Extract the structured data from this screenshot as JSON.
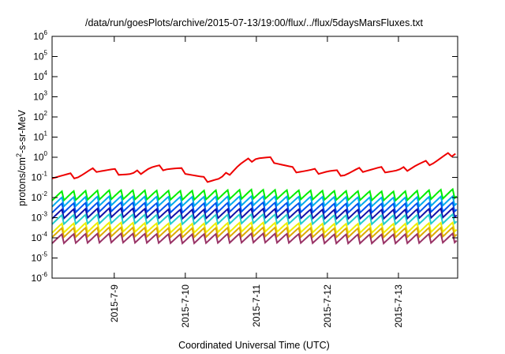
{
  "chart_data": {
    "type": "line",
    "title": "/data/run/goesPlots/archive/2015-07-13/19:00/flux/../flux/5daysMarsFluxes.txt",
    "xlabel": "Coordinated Universal Time (UTC)",
    "ylabel": {
      "pre": "protons/cm",
      "sup": "2",
      "post": "-s-sr-MeV"
    },
    "y_scale": "log",
    "ylim": [
      1e-06,
      1000000.0
    ],
    "y_ticks": [
      {
        "exp": -6
      },
      {
        "exp": -5
      },
      {
        "exp": -4
      },
      {
        "exp": -3
      },
      {
        "exp": -2
      },
      {
        "exp": -1
      },
      {
        "exp": 0
      },
      {
        "exp": 1
      },
      {
        "exp": 2
      },
      {
        "exp": 3
      },
      {
        "exp": 4
      },
      {
        "exp": 5
      },
      {
        "exp": 6
      }
    ],
    "x_range": [
      "2015-07-08 03:00",
      "2015-07-13 20:00"
    ],
    "x_ticks": [
      "2015-7-9",
      "2015-7-10",
      "2015-7-11",
      "2015-7-12",
      "2015-7-13"
    ],
    "grid": false,
    "legend": "none",
    "series": [
      {
        "color": "#ee0000",
        "x": [
          "2015-07-08 03:00",
          "2015-07-08 12:00",
          "2015-07-08 18:00",
          "2015-07-09 00:00",
          "2015-07-09 06:00",
          "2015-07-09 12:00",
          "2015-07-09 18:00",
          "2015-07-10 00:00",
          "2015-07-10 06:00",
          "2015-07-10 12:00",
          "2015-07-10 18:00",
          "2015-07-11 00:00",
          "2015-07-11 06:00",
          "2015-07-11 12:00",
          "2015-07-11 18:00",
          "2015-07-12 00:00",
          "2015-07-12 06:00",
          "2015-07-12 12:00",
          "2015-07-12 18:00",
          "2015-07-13 00:00",
          "2015-07-13 06:00",
          "2015-07-13 12:00",
          "2015-07-13 20:00"
        ],
        "values": [
          0.12,
          0.12,
          0.25,
          0.2,
          0.13,
          0.3,
          0.3,
          0.2,
          0.08,
          0.08,
          0.4,
          1.0,
          0.7,
          0.25,
          0.2,
          0.2,
          0.15,
          0.25,
          0.25,
          0.2,
          0.4,
          0.6,
          2.0
        ]
      },
      {
        "color": "#00ee00",
        "x": [
          "2015-07-08 03:00",
          "2015-07-09 00:00",
          "2015-07-10 00:00",
          "2015-07-11 00:00",
          "2015-07-12 00:00",
          "2015-07-13 00:00",
          "2015-07-13 20:00"
        ],
        "values": [
          0.012,
          0.014,
          0.013,
          0.015,
          0.013,
          0.012,
          0.016
        ]
      },
      {
        "color": "#00aaee",
        "x": [
          "2015-07-08 03:00",
          "2015-07-09 00:00",
          "2015-07-10 00:00",
          "2015-07-11 00:00",
          "2015-07-12 00:00",
          "2015-07-13 00:00",
          "2015-07-13 20:00"
        ],
        "values": [
          0.006,
          0.007,
          0.0065,
          0.007,
          0.0065,
          0.006,
          0.007
        ]
      },
      {
        "color": "#0055ee",
        "x": [
          "2015-07-08 03:00",
          "2015-07-09 00:00",
          "2015-07-10 00:00",
          "2015-07-11 00:00",
          "2015-07-12 00:00",
          "2015-07-13 00:00",
          "2015-07-13 20:00"
        ],
        "values": [
          0.003,
          0.0035,
          0.003,
          0.0035,
          0.003,
          0.003,
          0.0035
        ]
      },
      {
        "color": "#1111aa",
        "x": [
          "2015-07-08 03:00",
          "2015-07-09 00:00",
          "2015-07-10 00:00",
          "2015-07-11 00:00",
          "2015-07-12 00:00",
          "2015-07-13 00:00",
          "2015-07-13 20:00"
        ],
        "values": [
          0.0015,
          0.0018,
          0.0015,
          0.0017,
          0.0015,
          0.0015,
          0.0018
        ]
      },
      {
        "color": "#22cccc",
        "x": [
          "2015-07-08 03:00",
          "2015-07-09 00:00",
          "2015-07-10 00:00",
          "2015-07-11 00:00",
          "2015-07-12 00:00",
          "2015-07-13 00:00",
          "2015-07-13 20:00"
        ],
        "values": [
          0.0008,
          0.0009,
          0.0008,
          0.0009,
          0.0008,
          0.0008,
          0.0009
        ]
      },
      {
        "color": "#eeee00",
        "x": [
          "2015-07-08 03:00",
          "2015-07-09 00:00",
          "2015-07-10 00:00",
          "2015-07-11 00:00",
          "2015-07-12 00:00",
          "2015-07-13 00:00",
          "2015-07-13 20:00"
        ],
        "values": [
          0.0003,
          0.00035,
          0.0003,
          0.00035,
          0.0003,
          0.0003,
          0.00035
        ]
      },
      {
        "color": "#ddaa00",
        "x": [
          "2015-07-08 03:00",
          "2015-07-09 00:00",
          "2015-07-10 00:00",
          "2015-07-11 00:00",
          "2015-07-12 00:00",
          "2015-07-13 00:00",
          "2015-07-13 20:00"
        ],
        "values": [
          0.00018,
          0.0002,
          0.00018,
          0.0002,
          0.00018,
          0.00018,
          0.0002
        ]
      },
      {
        "color": "#993366",
        "x": [
          "2015-07-08 03:00",
          "2015-07-09 00:00",
          "2015-07-10 00:00",
          "2015-07-11 00:00",
          "2015-07-12 00:00",
          "2015-07-13 00:00",
          "2015-07-13 20:00"
        ],
        "values": [
          9e-05,
          0.0001,
          9e-05,
          0.0001,
          9e-05,
          9e-05,
          0.0001
        ]
      }
    ]
  }
}
